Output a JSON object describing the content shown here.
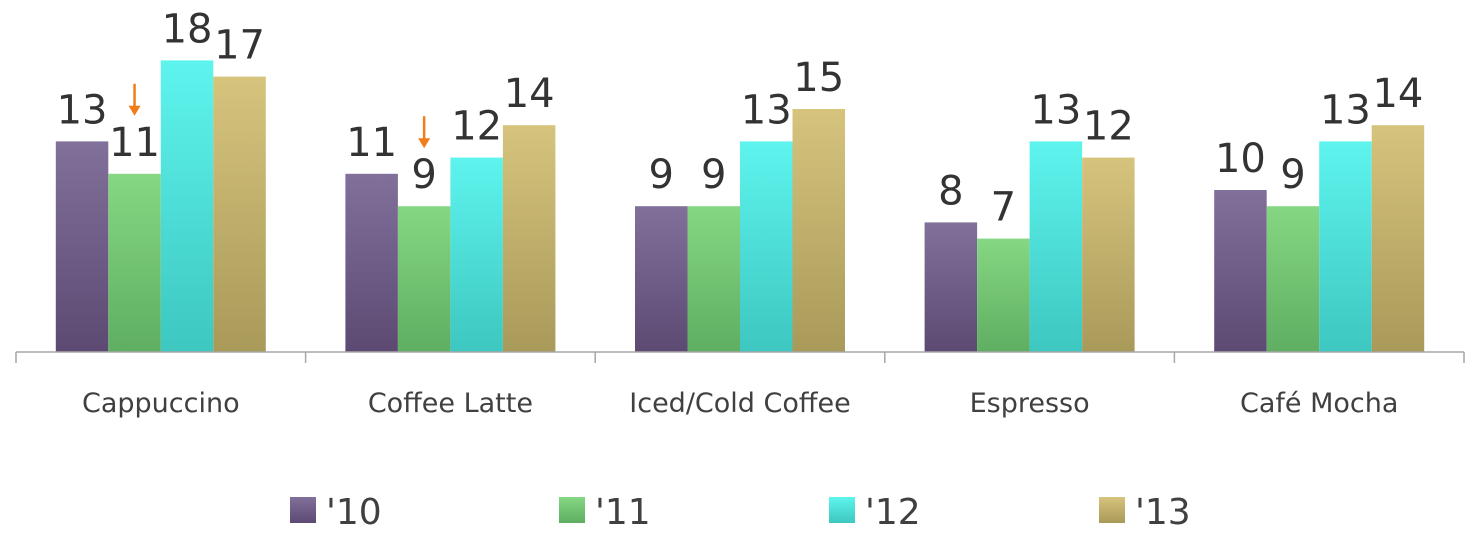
{
  "chart_data": {
    "type": "bar",
    "categories": [
      "Cappuccino",
      "Coffee Latte",
      "Iced/Cold Coffee",
      "Espresso",
      "Café Mocha"
    ],
    "series": [
      {
        "name": "'10",
        "values": [
          13,
          11,
          9,
          8,
          10
        ],
        "color_top": "#81709A",
        "color_bottom": "#5C4A73"
      },
      {
        "name": "'11",
        "values": [
          11,
          9,
          9,
          7,
          9
        ],
        "color_top": "#86D783",
        "color_bottom": "#5FAE62"
      },
      {
        "name": "'12",
        "values": [
          18,
          12,
          13,
          13,
          13
        ],
        "color_top": "#5EF4EE",
        "color_bottom": "#3DC7C0"
      },
      {
        "name": "'13",
        "values": [
          17,
          14,
          15,
          12,
          14
        ],
        "color_top": "#D6C47D",
        "color_bottom": "#A99A5A"
      }
    ],
    "ylim": [
      0,
      18
    ],
    "grid": false,
    "legend_position": "bottom",
    "data_labels": true,
    "annotations": [
      {
        "type": "down-arrow",
        "category": "Cappuccino",
        "series": "'11",
        "color": "#F07D1A"
      },
      {
        "type": "down-arrow",
        "category": "Coffee Latte",
        "series": "'11",
        "color": "#F07D1A"
      }
    ],
    "axis_color": "#A6A6A6"
  }
}
